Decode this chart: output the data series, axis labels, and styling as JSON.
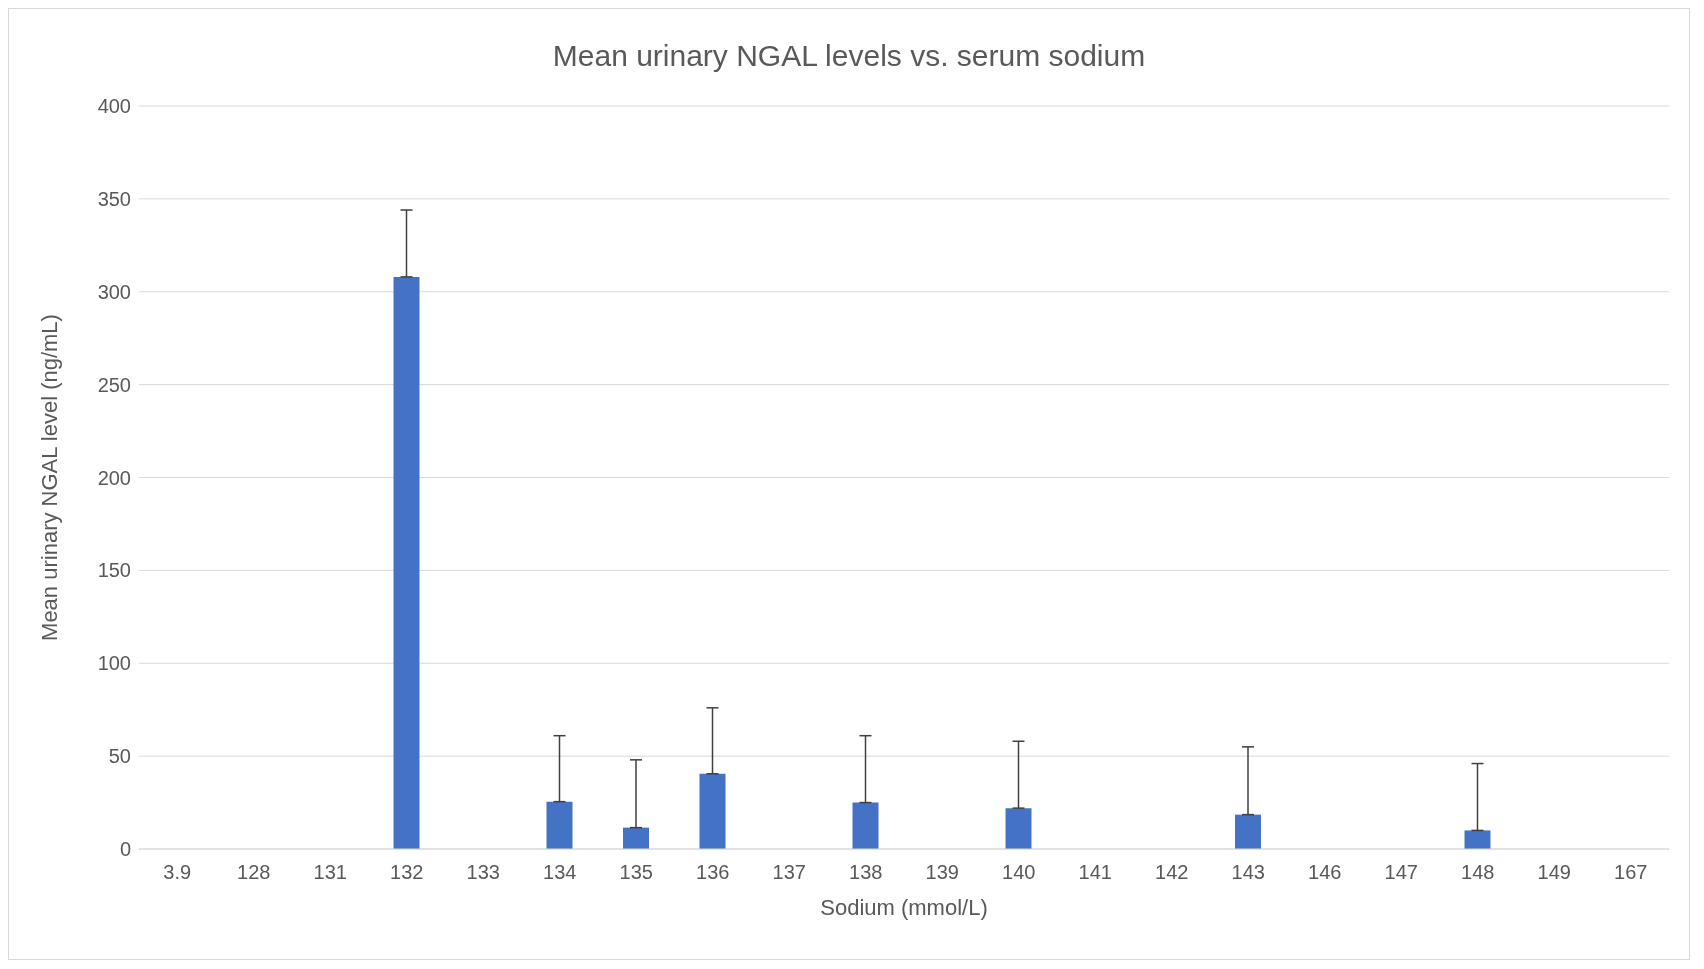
{
  "chart_data": {
    "type": "bar",
    "title": "Mean urinary NGAL levels vs. serum sodium",
    "xlabel": "Sodium (mmol/L)",
    "ylabel": "Mean urinary NGAL level (ng/mL)",
    "categories": [
      "3.9",
      "128",
      "131",
      "132",
      "133",
      "134",
      "135",
      "136",
      "137",
      "138",
      "139",
      "140",
      "141",
      "142",
      "143",
      "146",
      "147",
      "148",
      "149",
      "167"
    ],
    "values": [
      null,
      null,
      null,
      308,
      null,
      25.5,
      11.5,
      40.5,
      null,
      25,
      null,
      22,
      null,
      null,
      18.5,
      null,
      null,
      10,
      null,
      null
    ],
    "errors": [
      null,
      null,
      null,
      [
        308,
        344
      ],
      null,
      [
        25.5,
        61
      ],
      [
        11.5,
        48
      ],
      [
        40.5,
        76
      ],
      null,
      [
        25,
        61
      ],
      null,
      [
        22,
        58
      ],
      null,
      null,
      [
        18.5,
        55
      ],
      null,
      null,
      [
        10,
        46
      ],
      null,
      null
    ],
    "color": "#4472c4",
    "ylim": [
      0,
      400
    ],
    "yticks": [
      0,
      50,
      100,
      150,
      200,
      250,
      300,
      350,
      400
    ],
    "grid": "y"
  }
}
